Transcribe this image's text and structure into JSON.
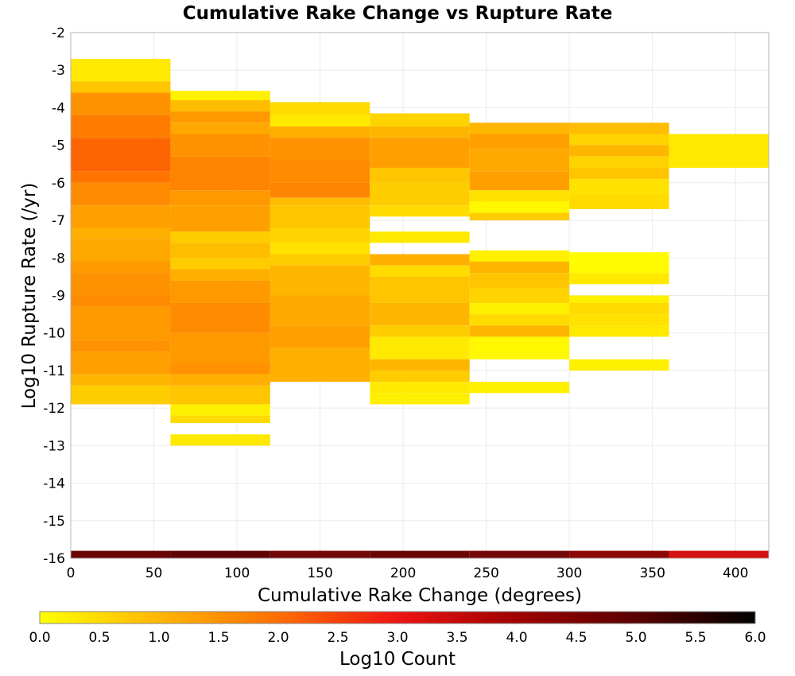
{
  "chart_data": {
    "type": "heatmap",
    "title": "Cumulative Rake Change vs Rupture Rate",
    "xlabel": "Cumulative Rake Change (degrees)",
    "ylabel": "Log10 Rupture Rate (/yr)",
    "xlim": [
      0,
      420
    ],
    "ylim": [
      -16,
      -2
    ],
    "grid": true,
    "x_ticks": [
      "0",
      "50",
      "100",
      "150",
      "200",
      "250",
      "300",
      "350",
      "400"
    ],
    "y_ticks": [
      "-2",
      "-3",
      "-4",
      "-5",
      "-6",
      "-7",
      "-8",
      "-9",
      "-10",
      "-11",
      "-12",
      "-13",
      "-14",
      "-15",
      "-16"
    ],
    "x_bin_width": 60,
    "y_bin_height": 0.3,
    "colorbar": {
      "label": "Log10 Count",
      "range": [
        0,
        6
      ],
      "ticks": [
        "0.0",
        "0.5",
        "1.0",
        "1.5",
        "2.0",
        "2.5",
        "3.0",
        "3.5",
        "4.0",
        "4.5",
        "5.0",
        "5.5",
        "6.0"
      ],
      "stops": [
        {
          "value": 0.0,
          "color": "#ffff00"
        },
        {
          "value": 1.0,
          "color": "#ffb600"
        },
        {
          "value": 2.0,
          "color": "#ff6e00"
        },
        {
          "value": 3.0,
          "color": "#ee1414"
        },
        {
          "value": 4.0,
          "color": "#a00000"
        },
        {
          "value": 5.0,
          "color": "#5a0000"
        },
        {
          "value": 6.0,
          "color": "#000000"
        }
      ]
    },
    "columns": [
      {
        "x0": 0,
        "x1": 60,
        "cells": [
          [
            -3.3,
            -2.7,
            0.3
          ],
          [
            -3.6,
            -3.3,
            0.8
          ],
          [
            -4.2,
            -3.6,
            1.5
          ],
          [
            -4.8,
            -4.2,
            1.8
          ],
          [
            -5.7,
            -4.8,
            2.1
          ],
          [
            -6.0,
            -5.7,
            1.9
          ],
          [
            -6.6,
            -6.0,
            1.6
          ],
          [
            -7.2,
            -6.6,
            1.3
          ],
          [
            -7.5,
            -7.2,
            1.1
          ],
          [
            -8.1,
            -7.5,
            1.2
          ],
          [
            -8.4,
            -8.1,
            1.4
          ],
          [
            -9.0,
            -8.4,
            1.5
          ],
          [
            -9.3,
            -9.0,
            1.6
          ],
          [
            -10.2,
            -9.3,
            1.4
          ],
          [
            -10.5,
            -10.2,
            1.5
          ],
          [
            -11.1,
            -10.5,
            1.3
          ],
          [
            -11.4,
            -11.1,
            1.0
          ],
          [
            -11.9,
            -11.4,
            0.7
          ]
        ]
      },
      {
        "x0": 60,
        "x1": 120,
        "cells": [
          [
            -3.8,
            -3.55,
            0.2
          ],
          [
            -4.1,
            -3.8,
            0.9
          ],
          [
            -4.4,
            -4.1,
            1.4
          ],
          [
            -4.7,
            -4.4,
            1.2
          ],
          [
            -5.3,
            -4.7,
            1.5
          ],
          [
            -6.2,
            -5.3,
            1.7
          ],
          [
            -6.6,
            -6.2,
            1.4
          ],
          [
            -7.3,
            -6.6,
            1.3
          ],
          [
            -7.6,
            -7.3,
            0.7
          ],
          [
            -8.0,
            -7.6,
            0.9
          ],
          [
            -8.3,
            -8.0,
            0.7
          ],
          [
            -8.6,
            -8.3,
            1.1
          ],
          [
            -9.2,
            -8.6,
            1.4
          ],
          [
            -10.0,
            -9.2,
            1.6
          ],
          [
            -10.8,
            -10.0,
            1.4
          ],
          [
            -11.1,
            -10.8,
            1.5
          ],
          [
            -11.4,
            -11.1,
            1.1
          ],
          [
            -11.9,
            -11.4,
            0.8
          ],
          [
            -12.2,
            -11.9,
            0.2
          ],
          [
            -12.4,
            -12.2,
            0.5
          ],
          [
            -13.0,
            -12.7,
            0.3
          ]
        ]
      },
      {
        "x0": 120,
        "x1": 180,
        "cells": [
          [
            -4.2,
            -3.85,
            0.5
          ],
          [
            -4.5,
            -4.2,
            0.3
          ],
          [
            -4.8,
            -4.5,
            1.1
          ],
          [
            -5.4,
            -4.8,
            1.5
          ],
          [
            -6.0,
            -5.4,
            1.6
          ],
          [
            -6.4,
            -6.0,
            1.7
          ],
          [
            -6.6,
            -6.4,
            0.9
          ],
          [
            -7.2,
            -6.6,
            0.8
          ],
          [
            -7.6,
            -7.2,
            0.6
          ],
          [
            -7.9,
            -7.6,
            0.4
          ],
          [
            -8.2,
            -7.9,
            0.7
          ],
          [
            -9.0,
            -8.2,
            1.0
          ],
          [
            -9.8,
            -9.0,
            1.2
          ],
          [
            -10.4,
            -9.8,
            1.3
          ],
          [
            -11.3,
            -10.4,
            1.1
          ]
        ]
      },
      {
        "x0": 180,
        "x1": 240,
        "cells": [
          [
            -4.5,
            -4.15,
            0.6
          ],
          [
            -4.8,
            -4.5,
            1.0
          ],
          [
            -5.6,
            -4.8,
            1.3
          ],
          [
            -6.0,
            -5.6,
            0.8
          ],
          [
            -6.6,
            -6.0,
            0.7
          ],
          [
            -6.9,
            -6.6,
            0.5
          ],
          [
            -7.6,
            -7.3,
            0.3
          ],
          [
            -8.2,
            -7.9,
            1.1
          ],
          [
            -8.5,
            -8.2,
            0.5
          ],
          [
            -9.2,
            -8.5,
            0.8
          ],
          [
            -9.8,
            -9.2,
            1.0
          ],
          [
            -10.1,
            -9.8,
            0.7
          ],
          [
            -10.7,
            -10.1,
            0.3
          ],
          [
            -11.0,
            -10.7,
            1.0
          ],
          [
            -11.3,
            -11.0,
            0.7
          ],
          [
            -11.6,
            -11.3,
            0.3
          ],
          [
            -11.9,
            -11.6,
            0.2
          ]
        ]
      },
      {
        "x0": 240,
        "x1": 300,
        "cells": [
          [
            -4.7,
            -4.4,
            1.0
          ],
          [
            -5.1,
            -4.7,
            1.3
          ],
          [
            -5.7,
            -5.1,
            1.2
          ],
          [
            -6.2,
            -5.7,
            1.3
          ],
          [
            -6.5,
            -6.2,
            0.4
          ],
          [
            -6.8,
            -6.5,
            0.1
          ],
          [
            -7.0,
            -6.8,
            0.7
          ],
          [
            -8.1,
            -7.8,
            0.2
          ],
          [
            -8.4,
            -8.1,
            1.0
          ],
          [
            -8.8,
            -8.4,
            0.8
          ],
          [
            -9.2,
            -8.8,
            0.6
          ],
          [
            -9.5,
            -9.2,
            0.2
          ],
          [
            -9.8,
            -9.5,
            0.5
          ],
          [
            -10.1,
            -9.8,
            1.0
          ],
          [
            -10.7,
            -10.1,
            0.1
          ],
          [
            -11.6,
            -11.3,
            0.2
          ]
        ]
      },
      {
        "x0": 300,
        "x1": 360,
        "cells": [
          [
            -4.7,
            -4.4,
            0.9
          ],
          [
            -5.0,
            -4.7,
            0.6
          ],
          [
            -5.3,
            -5.0,
            1.0
          ],
          [
            -5.6,
            -5.3,
            0.6
          ],
          [
            -5.9,
            -5.6,
            0.8
          ],
          [
            -6.3,
            -5.9,
            0.4
          ],
          [
            -6.7,
            -6.3,
            0.5
          ],
          [
            -8.4,
            -7.85,
            0.05
          ],
          [
            -8.7,
            -8.4,
            0.3
          ],
          [
            -9.0,
            -9.0,
            0.0
          ],
          [
            -9.2,
            -9.0,
            0.2
          ],
          [
            -9.5,
            -9.2,
            0.5
          ],
          [
            -9.8,
            -9.5,
            0.4
          ],
          [
            -10.1,
            -9.8,
            0.3
          ],
          [
            -11.0,
            -10.7,
            0.2
          ]
        ]
      },
      {
        "x0": 360,
        "x1": 420,
        "cells": [
          [
            -5.6,
            -4.7,
            0.3
          ]
        ]
      }
    ],
    "strip": {
      "y0": -16.0,
      "y1": -15.8,
      "bins": [
        {
          "x0": 0,
          "x1": 60,
          "color": "#6b0404"
        },
        {
          "x0": 60,
          "x1": 120,
          "color": "#5e0404"
        },
        {
          "x0": 120,
          "x1": 180,
          "color": "#730606"
        },
        {
          "x0": 180,
          "x1": 240,
          "color": "#6b0404"
        },
        {
          "x0": 240,
          "x1": 300,
          "color": "#740606"
        },
        {
          "x0": 300,
          "x1": 360,
          "color": "#8e0707"
        },
        {
          "x0": 360,
          "x1": 420,
          "color": "#d41010"
        }
      ]
    }
  }
}
